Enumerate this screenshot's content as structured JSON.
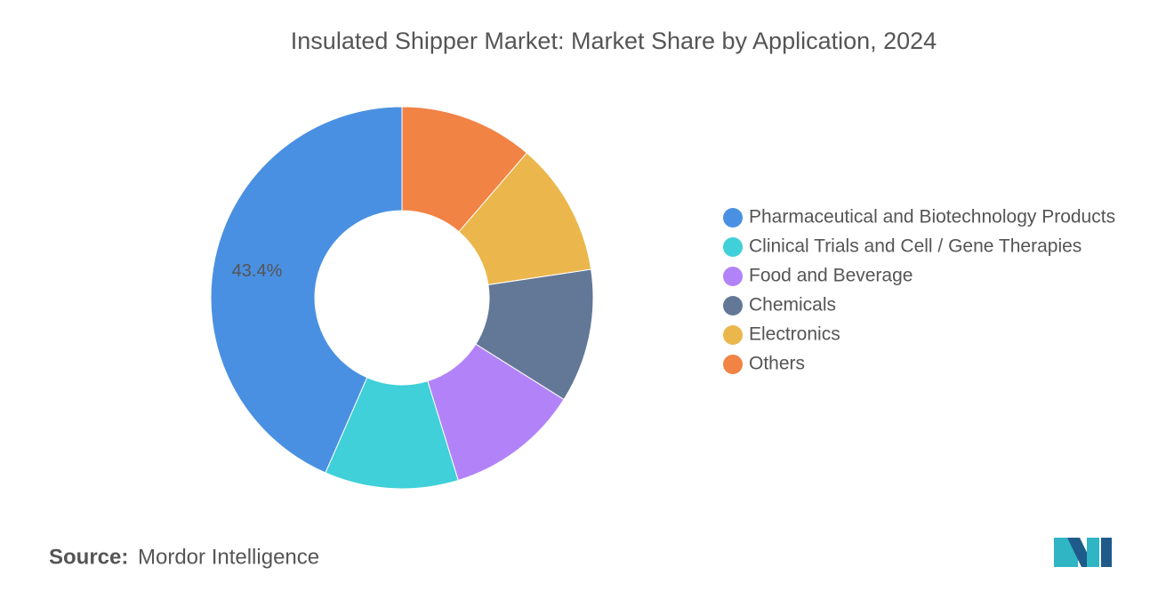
{
  "chart_data": {
    "type": "donut",
    "title": "Insulated Shipper Market: Market Share by Application, 2024",
    "categories": [
      "Pharmaceutical and Biotechnology Products",
      "Clinical Trials and Cell / Gene Therapies",
      "Food and Beverage",
      "Chemicals",
      "Electronics",
      "Others"
    ],
    "values": [
      43.4,
      11.3,
      11.3,
      11.3,
      11.3,
      11.3
    ],
    "value_labels": [
      "43.4%",
      null,
      null,
      null,
      null,
      null
    ],
    "colors": [
      "#4a90e2",
      "#3fd0d9",
      "#b283f8",
      "#637897",
      "#ebb64b",
      "#f18345"
    ],
    "legend": "right"
  },
  "source": {
    "label": "Source:",
    "text": "Mordor Intelligence"
  }
}
